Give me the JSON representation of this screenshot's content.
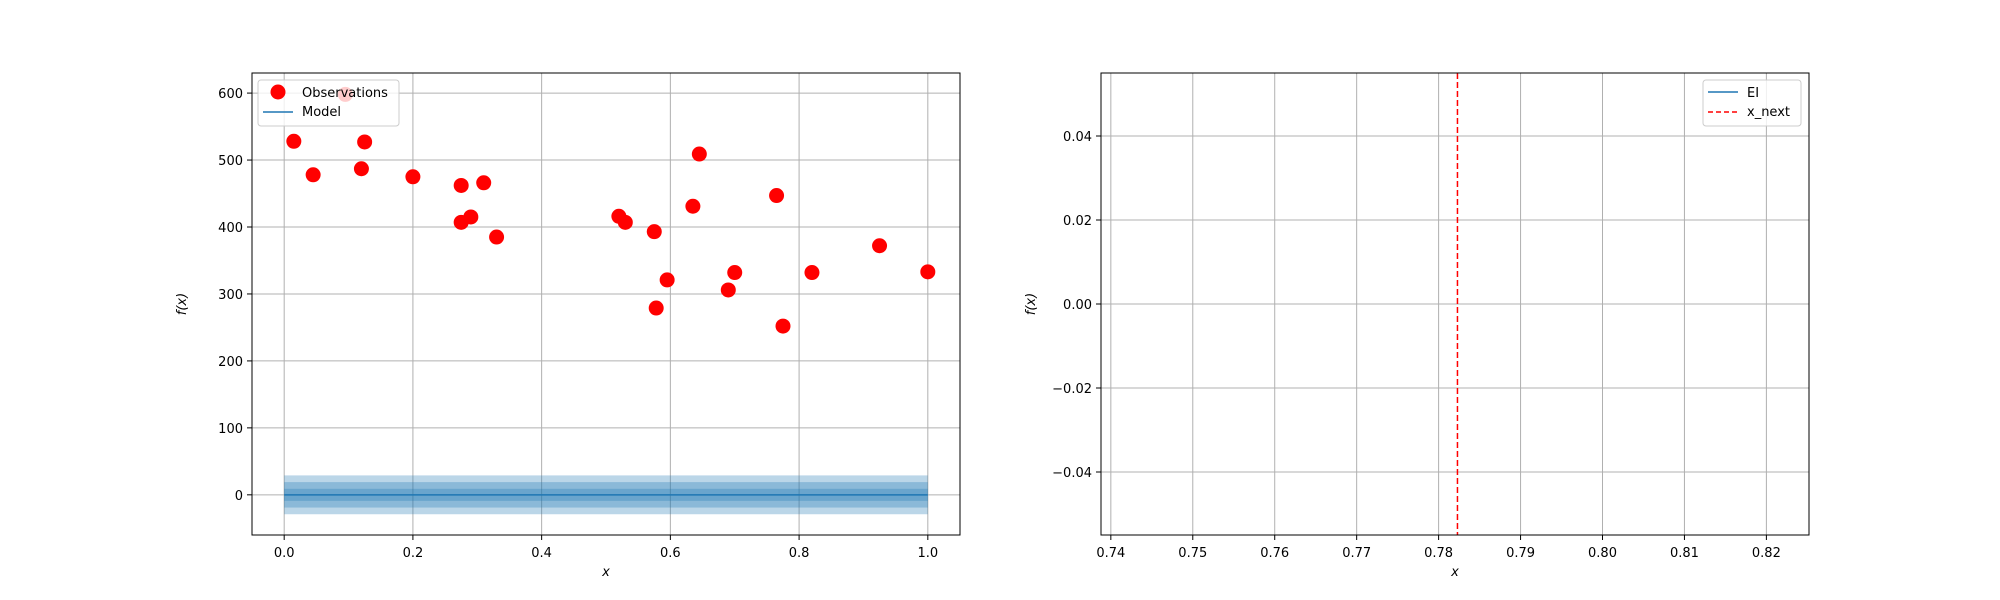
{
  "colors": {
    "observation": "#ff0000",
    "model": "#1f77b4",
    "band": "#1f77b4",
    "next": "#ff0000",
    "grid": "#b0b0b0"
  },
  "chart_data": [
    {
      "type": "scatter",
      "xlabel": "x",
      "ylabel": "f(x)",
      "xlim": [
        -0.05,
        1.05
      ],
      "ylim": [
        -60,
        630
      ],
      "xticks": [
        "0.0",
        "0.2",
        "0.4",
        "0.6",
        "0.8",
        "1.0"
      ],
      "yticks": [
        "0",
        "100",
        "200",
        "300",
        "400",
        "500",
        "600"
      ],
      "grid": true,
      "legend_position": "top-left",
      "legend": [
        "Observations",
        "Model"
      ],
      "series": [
        {
          "name": "Observations",
          "kind": "scatter",
          "x": [
            0.015,
            0.045,
            0.095,
            0.12,
            0.125,
            0.2,
            0.275,
            0.275,
            0.29,
            0.31,
            0.33,
            0.52,
            0.53,
            0.575,
            0.578,
            0.595,
            0.635,
            0.645,
            0.69,
            0.7,
            0.765,
            0.775,
            0.82,
            0.925,
            1.0
          ],
          "y": [
            528,
            478,
            598,
            487,
            527,
            475,
            462,
            407,
            415,
            466,
            385,
            416,
            407,
            393,
            279,
            321,
            431,
            509,
            306,
            332,
            447,
            252,
            332,
            372,
            333
          ]
        },
        {
          "name": "Model",
          "kind": "line",
          "x": [
            0.0,
            1.0
          ],
          "y": [
            0,
            0
          ]
        }
      ],
      "confidence_bands": [
        {
          "lower": -9,
          "upper": 9
        },
        {
          "lower": -19,
          "upper": 19
        },
        {
          "lower": -29,
          "upper": 29
        }
      ]
    },
    {
      "type": "line",
      "xlabel": "x",
      "ylabel": "f(x)",
      "xlim": [
        0.7388,
        0.8252
      ],
      "ylim": [
        -0.055,
        0.055
      ],
      "xticks": [
        "0.74",
        "0.75",
        "0.76",
        "0.77",
        "0.78",
        "0.79",
        "0.80",
        "0.81",
        "0.82"
      ],
      "yticks": [
        "−0.04",
        "−0.02",
        "0.00",
        "0.02",
        "0.04"
      ],
      "grid": true,
      "legend_position": "top-right",
      "legend": [
        "EI",
        "x_next"
      ],
      "series": [
        {
          "name": "EI",
          "kind": "line",
          "x": [],
          "y": []
        },
        {
          "name": "x_next",
          "kind": "vline",
          "x": 0.7823
        }
      ]
    }
  ]
}
